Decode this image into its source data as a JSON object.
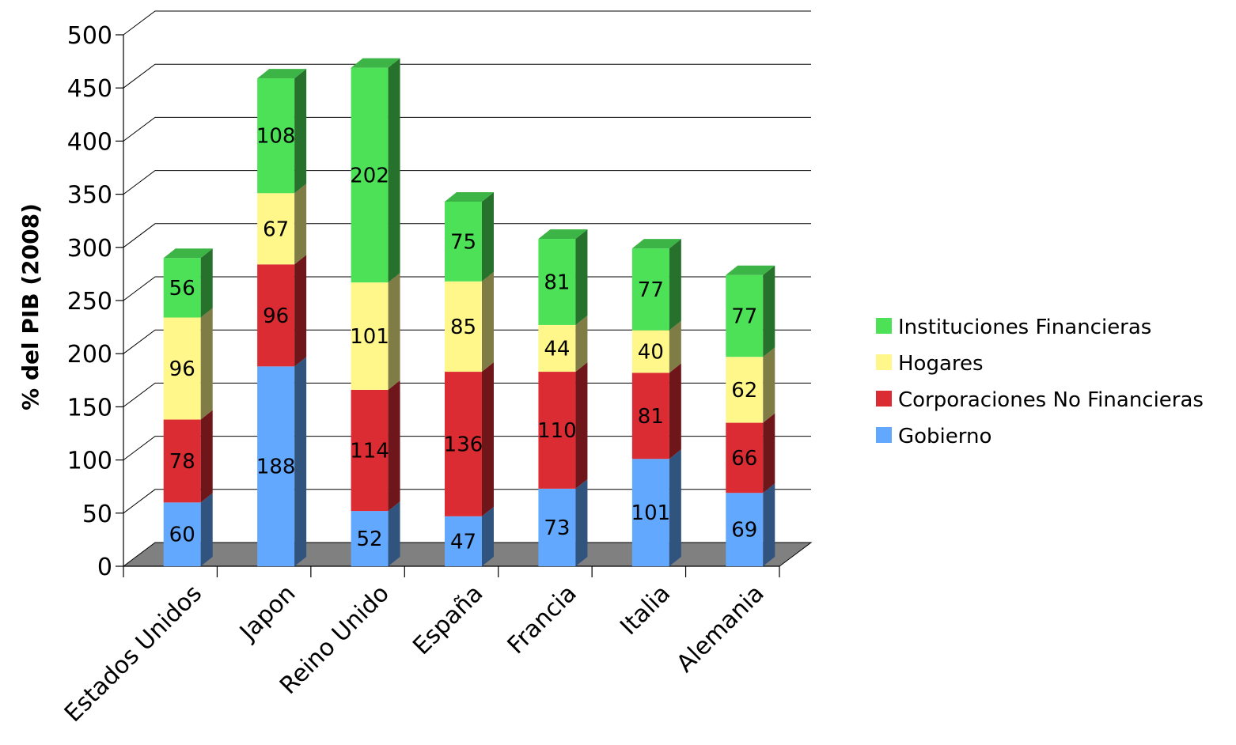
{
  "chart_data": {
    "type": "bar",
    "stacked": true,
    "three_d": true,
    "title": "",
    "xlabel": "",
    "ylabel": "% del PIB (2008)",
    "ylim": [
      0,
      500
    ],
    "yticks": [
      0,
      50,
      100,
      150,
      200,
      250,
      300,
      350,
      400,
      450,
      500
    ],
    "grid": true,
    "legend_position": "right",
    "categories": [
      "Estados Unidos",
      "Japon",
      "Reino Unido",
      "España",
      "Francia",
      "Italia",
      "Alemania"
    ],
    "series": [
      {
        "name": "Gobierno",
        "color": "#62a8fe",
        "values": [
          60,
          188,
          52,
          47,
          73,
          101,
          69
        ]
      },
      {
        "name": "Corporaciones No Financieras",
        "color": "#dc2c33",
        "values": [
          78,
          96,
          114,
          136,
          110,
          81,
          66
        ]
      },
      {
        "name": "Hogares",
        "color": "#fff78a",
        "values": [
          96,
          67,
          101,
          85,
          44,
          40,
          62
        ]
      },
      {
        "name": "Instituciones Financieras",
        "color": "#4ce157",
        "values": [
          56,
          108,
          202,
          75,
          81,
          77,
          77
        ]
      }
    ],
    "floor_color": "#808080"
  }
}
